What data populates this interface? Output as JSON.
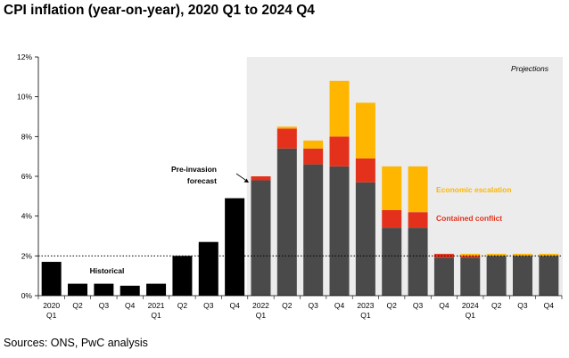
{
  "chart_data": {
    "type": "bar",
    "title": "CPI inflation (year-on-year), 2020 Q1 to 2024 Q4",
    "source": "Sources: ONS, PwC analysis",
    "xlabel": "",
    "ylabel": "",
    "ylim": [
      0,
      12
    ],
    "y_ticks": [
      "0%",
      "2%",
      "4%",
      "6%",
      "8%",
      "10%",
      "12%"
    ],
    "reference_line": 2,
    "categories": [
      {
        "top": "2020",
        "bottom": "Q1"
      },
      {
        "top": "Q2",
        "bottom": ""
      },
      {
        "top": "Q3",
        "bottom": ""
      },
      {
        "top": "Q4",
        "bottom": ""
      },
      {
        "top": "2021",
        "bottom": "Q1"
      },
      {
        "top": "Q2",
        "bottom": ""
      },
      {
        "top": "Q3",
        "bottom": ""
      },
      {
        "top": "Q4",
        "bottom": ""
      },
      {
        "top": "2022",
        "bottom": "Q1"
      },
      {
        "top": "Q2",
        "bottom": ""
      },
      {
        "top": "Q3",
        "bottom": ""
      },
      {
        "top": "Q4",
        "bottom": ""
      },
      {
        "top": "2023",
        "bottom": "Q1"
      },
      {
        "top": "Q2",
        "bottom": ""
      },
      {
        "top": "Q3",
        "bottom": ""
      },
      {
        "top": "Q4",
        "bottom": ""
      },
      {
        "top": "2024",
        "bottom": "Q1"
      },
      {
        "top": "Q2",
        "bottom": ""
      },
      {
        "top": "Q3",
        "bottom": ""
      },
      {
        "top": "Q4",
        "bottom": ""
      }
    ],
    "series": [
      {
        "name": "Historical",
        "color": "#000000",
        "values": [
          1.7,
          0.6,
          0.6,
          0.5,
          0.6,
          2.0,
          2.7,
          4.9,
          null,
          null,
          null,
          null,
          null,
          null,
          null,
          null,
          null,
          null,
          null,
          null
        ]
      },
      {
        "name": "Pre-invasion forecast",
        "color": "#4a4a4a",
        "values": [
          null,
          null,
          null,
          null,
          null,
          null,
          null,
          null,
          5.8,
          7.4,
          6.6,
          6.5,
          5.7,
          3.4,
          3.4,
          1.9,
          1.9,
          2.0,
          2.0,
          2.0
        ]
      },
      {
        "name": "Contained conflict",
        "color": "#e3311c",
        "values": [
          null,
          null,
          null,
          null,
          null,
          null,
          null,
          null,
          0.2,
          1.0,
          0.8,
          1.5,
          1.2,
          0.9,
          0.8,
          0.2,
          0.1,
          0.0,
          0.0,
          0.0
        ]
      },
      {
        "name": "Economic escalation",
        "color": "#ffb600",
        "values": [
          null,
          null,
          null,
          null,
          null,
          null,
          null,
          null,
          0.0,
          0.1,
          0.4,
          2.8,
          2.8,
          2.2,
          2.3,
          0.0,
          0.1,
          0.1,
          0.1,
          0.1
        ]
      }
    ],
    "annotations": {
      "projections": "Projections",
      "historical": "Historical",
      "pre_invasion_line1": "Pre-invasion",
      "pre_invasion_line2": "forecast",
      "economic_escalation": "Economic escalation",
      "contained_conflict": "Contained conflict"
    },
    "colors": {
      "projection_band": "#ececec",
      "escalation_label": "#ffb600",
      "conflict_label": "#e3311c"
    }
  }
}
